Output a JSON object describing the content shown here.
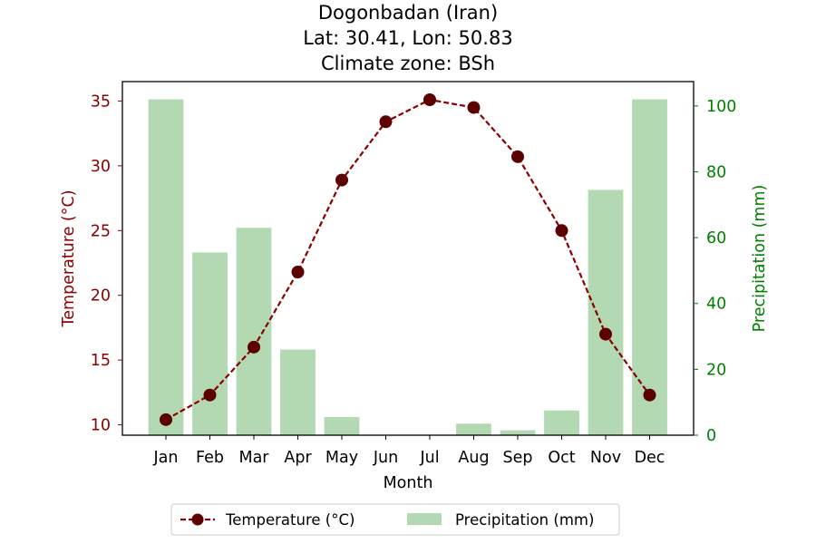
{
  "chart_data": {
    "type": "bar+line",
    "title_lines": [
      "Dogonbadan (Iran)",
      "Lat: 30.41, Lon: 50.83",
      "Climate zone: BSh"
    ],
    "xlabel": "Month",
    "ylabel_left": "Temperature (°C)",
    "ylabel_right": "Precipitation (mm)",
    "categories": [
      "Jan",
      "Feb",
      "Mar",
      "Apr",
      "May",
      "Jun",
      "Jul",
      "Aug",
      "Sep",
      "Oct",
      "Nov",
      "Dec"
    ],
    "temperature": {
      "name": "Temperature (°C)",
      "color": "#8b0000",
      "values": [
        10.4,
        12.3,
        16.0,
        21.8,
        28.9,
        33.4,
        35.1,
        34.5,
        30.7,
        25.0,
        17.0,
        12.3
      ]
    },
    "precipitation": {
      "name": "Precipitation (mm)",
      "color": "#b2d9b2",
      "values": [
        102,
        55.5,
        63,
        26,
        5.5,
        0,
        0,
        3.5,
        1.5,
        7.5,
        74.5,
        102
      ]
    },
    "ylim_left": [
      9.2,
      36.5
    ],
    "ylim_right": [
      0,
      107.4
    ],
    "yticks_left": [
      10,
      15,
      20,
      25,
      30,
      35
    ],
    "yticks_right": [
      0,
      20,
      40,
      60,
      80,
      100
    ],
    "left_axis_color": "#8b0000",
    "right_axis_color": "#008000",
    "legend_placement": "bottom-center",
    "grid": false
  }
}
